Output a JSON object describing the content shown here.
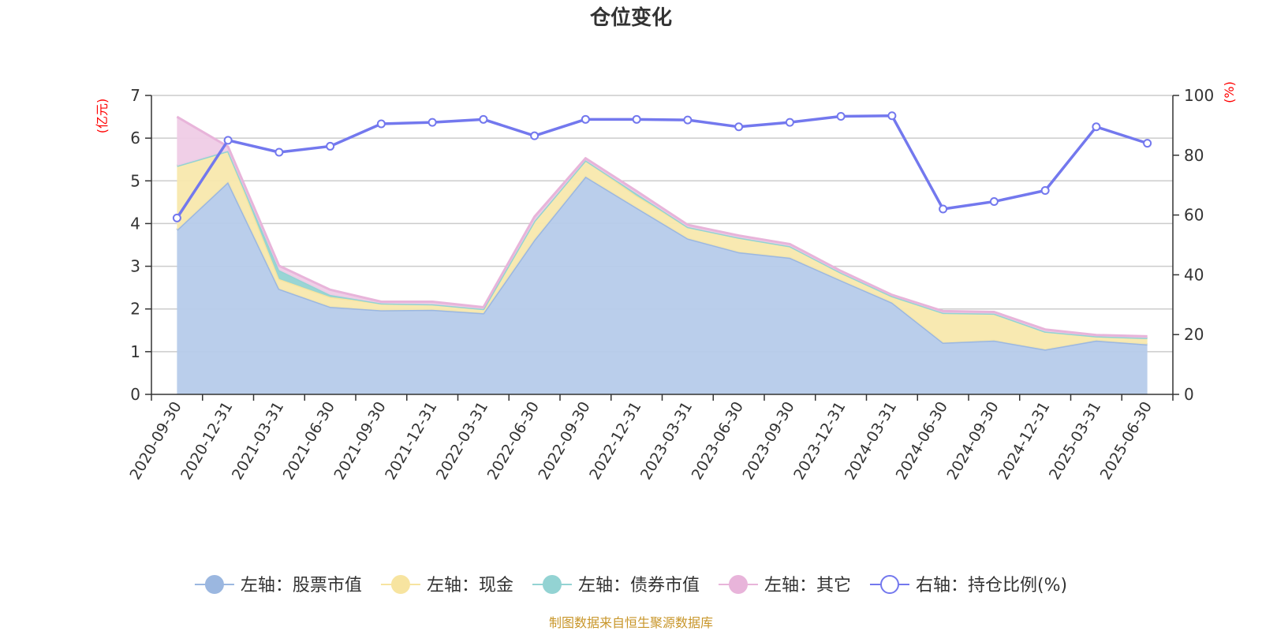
{
  "chart_data": {
    "type": "area",
    "title": "仓位变化",
    "categories": [
      "2020-09-30",
      "2020-12-31",
      "2021-03-31",
      "2021-06-30",
      "2021-09-30",
      "2021-12-31",
      "2022-03-31",
      "2022-06-30",
      "2022-09-30",
      "2022-12-31",
      "2023-03-31",
      "2023-06-30",
      "2023-09-30",
      "2023-12-31",
      "2024-03-31",
      "2024-06-30",
      "2024-09-30",
      "2024-12-31",
      "2025-03-31",
      "2025-06-30"
    ],
    "left_axis": {
      "unit_label": "(亿元)",
      "ylim": [
        0,
        7
      ],
      "ticks": [
        0,
        1,
        2,
        3,
        4,
        5,
        6,
        7
      ]
    },
    "right_axis": {
      "unit_label": "(%)",
      "ylim": [
        0,
        100
      ],
      "ticks": [
        0,
        20,
        40,
        60,
        80,
        100
      ]
    },
    "series": [
      {
        "name": "左轴：股票市值",
        "axis": "left",
        "kind": "stacked-area",
        "color": "#9bb7e0",
        "fill": "#b6cbea",
        "values": [
          3.85,
          4.97,
          2.47,
          2.05,
          1.97,
          1.98,
          1.9,
          3.62,
          5.1,
          4.37,
          3.65,
          3.33,
          3.2,
          2.67,
          2.15,
          1.21,
          1.26,
          1.05,
          1.26,
          1.17
        ]
      },
      {
        "name": "左轴：现金",
        "axis": "left",
        "kind": "stacked-area",
        "color": "#f7e4a0",
        "fill": "#f8e8ad",
        "values": [
          1.5,
          0.73,
          0.23,
          0.23,
          0.16,
          0.13,
          0.1,
          0.44,
          0.38,
          0.28,
          0.27,
          0.34,
          0.27,
          0.18,
          0.15,
          0.7,
          0.63,
          0.42,
          0.1,
          0.15
        ]
      },
      {
        "name": "左轴：债券市值",
        "axis": "left",
        "kind": "stacked-area",
        "color": "#93d3d3",
        "fill": "#93d3d3",
        "values": [
          0,
          0,
          0.21,
          0.05,
          0,
          0,
          0,
          0,
          0,
          0.05,
          0,
          0,
          0,
          0,
          0,
          0,
          0,
          0,
          0,
          0
        ]
      },
      {
        "name": "左轴：其它",
        "axis": "left",
        "kind": "stacked-area",
        "color": "#e8b4da",
        "fill": "#efcce6",
        "values": [
          1.15,
          0.1,
          0.1,
          0.12,
          0.04,
          0.06,
          0.04,
          0.1,
          0.05,
          0.06,
          0.05,
          0.05,
          0.05,
          0.04,
          0.03,
          0.04,
          0.04,
          0.05,
          0.03,
          0.04
        ]
      },
      {
        "name": "右轴：持仓比例(%)",
        "axis": "right",
        "kind": "line",
        "color": "#7378ee",
        "values": [
          59,
          85,
          81,
          83,
          90.5,
          91,
          92,
          86.5,
          92,
          92,
          91.8,
          89.5,
          91,
          93,
          93.2,
          62,
          64.5,
          68.2,
          89.5,
          84
        ]
      }
    ],
    "grid": true,
    "legend_position": "bottom",
    "source_note": "制图数据来自恒生聚源数据库"
  }
}
